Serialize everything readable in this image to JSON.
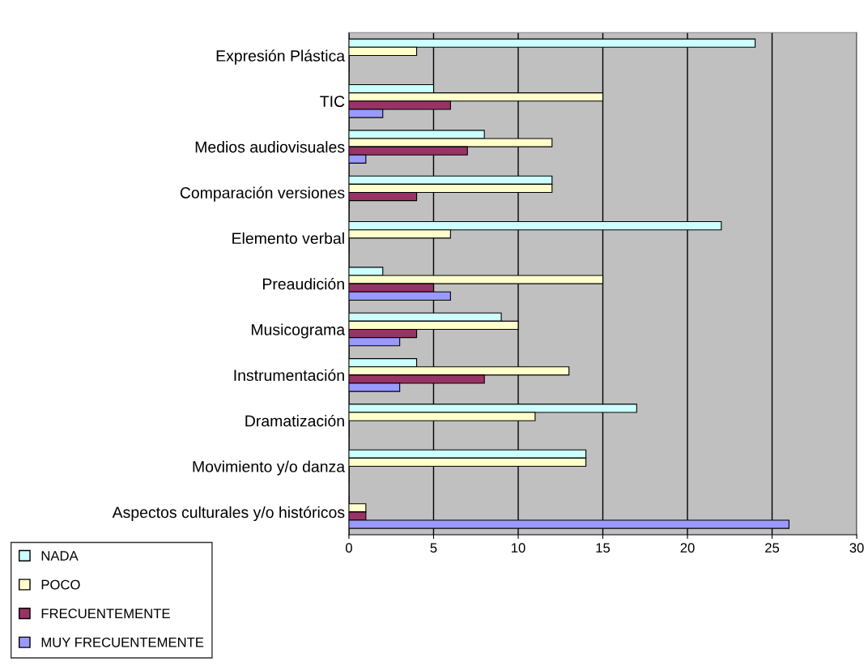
{
  "chart_data": {
    "type": "bar",
    "orientation": "horizontal",
    "categories": [
      "Expresión Plástica",
      "TIC",
      "Medios audiovisuales",
      "Comparación versiones",
      "Elemento verbal",
      "Preaudición",
      "Musicograma",
      "Instrumentación",
      "Dramatización",
      "Movimiento y/o danza",
      "Aspectos culturales y/o históricos"
    ],
    "series": [
      {
        "name": "NADA",
        "color": "#ccffff",
        "values": [
          24,
          5,
          8,
          12,
          22,
          2,
          9,
          4,
          17,
          14,
          0
        ]
      },
      {
        "name": "POCO",
        "color": "#ffffcc",
        "values": [
          4,
          15,
          12,
          12,
          6,
          15,
          10,
          13,
          11,
          14,
          1
        ]
      },
      {
        "name": "FRECUENTEMENTE",
        "color": "#993366",
        "values": [
          0,
          6,
          7,
          4,
          0,
          5,
          4,
          8,
          0,
          0,
          1
        ]
      },
      {
        "name": "MUY FRECUENTEMENTE",
        "color": "#9999ff",
        "values": [
          0,
          2,
          1,
          0,
          0,
          6,
          3,
          3,
          0,
          0,
          26
        ]
      }
    ],
    "xlim": [
      0,
      30
    ],
    "xticks": [
      0,
      5,
      10,
      15,
      20,
      25,
      30
    ],
    "grid": "x",
    "legend": "bottom left"
  }
}
